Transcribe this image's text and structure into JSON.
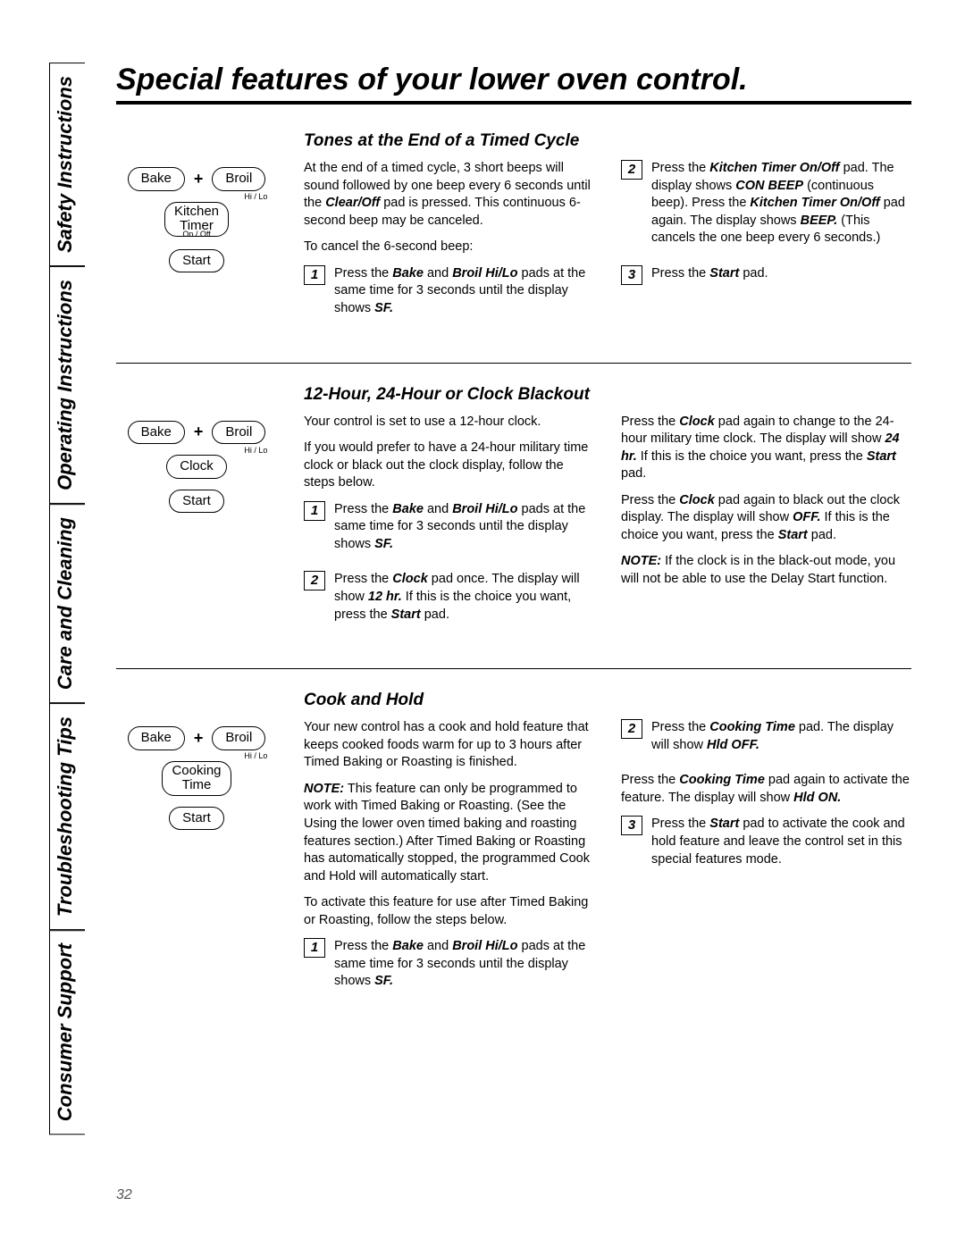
{
  "page_number": "32",
  "title": "Special features of your lower oven control.",
  "sidebar_tabs": [
    "Safety Instructions",
    "Operating Instructions",
    "Care and Cleaning",
    "Troubleshooting Tips",
    "Consumer Support"
  ],
  "btn": {
    "bake": "Bake",
    "broil": "Broil",
    "hilo": "Hi / Lo",
    "kitchen_timer": "Kitchen\nTimer",
    "onoff": "On / Off",
    "clock": "Clock",
    "cooking_time": "Cooking\nTime",
    "start": "Start",
    "plus": "+"
  },
  "sec1": {
    "heading": "Tones at the End of a Timed Cycle",
    "left_p1": "At the end of a timed cycle, 3 short beeps will sound followed by one beep every 6 seconds until the <b><i>Clear/Off</i></b> pad is pressed. This continuous 6-second beep may be canceled.",
    "left_p2": "To cancel the 6-second beep:",
    "left_step1": "Press the <b><i>Bake</i></b> and <b><i>Broil Hi/Lo</i></b> pads at the same time for 3 seconds until the display shows <b><i>SF.</i></b>",
    "right_step2": "Press the <b><i>Kitchen Timer On/Off</i></b> pad. The display shows <b><i>CON BEEP</i></b> (continuous beep). Press the <b><i>Kitchen Timer On/Off</i></b> pad again. The display shows <b><i>BEEP.</i></b> (This cancels the one beep every 6 seconds.)",
    "right_step3": "Press the <b><i>Start</i></b> pad."
  },
  "sec2": {
    "heading": "12-Hour, 24-Hour or Clock Blackout",
    "left_p1": "Your control is set to use a 12-hour clock.",
    "left_p2": "If you would prefer to have a 24-hour military time clock or black out the clock display, follow the steps below.",
    "left_step1": "Press the <b><i>Bake</i></b> and <b><i>Broil Hi/Lo</i></b> pads at the same time for 3 seconds until the display shows <b><i>SF.</i></b>",
    "left_step2": "Press the <b><i>Clock</i></b> pad once. The display will show <b><i>12 hr.</i></b> If this is the choice you want, press the <b><i>Start</i></b> pad.",
    "right_p1": "Press the <b><i>Clock</i></b> pad again to change to the 24-hour military time clock. The display will show <b><i>24 hr.</i></b> If this is the choice you want, press the <b><i>Start</i></b> pad.",
    "right_p2": "Press the <b><i>Clock</i></b> pad again to black out the clock display. The display will show <b><i>OFF.</i></b> If this is the choice you want, press the <b><i>Start</i></b> pad.",
    "right_note": "<b><i>NOTE:</i></b> If the clock is in the black-out mode, you will not be able to use the Delay Start function."
  },
  "sec3": {
    "heading": "Cook and Hold",
    "left_p1": "Your new control has a cook and hold feature that keeps cooked foods warm for up to 3 hours after Timed Baking or Roasting is finished.",
    "left_note": "<b><i>NOTE:</i></b> This feature can only be programmed to work with Timed Baking or Roasting. (See the Using the lower oven timed baking and roasting features section.) After Timed Baking or Roasting has automatically stopped, the programmed Cook and Hold will automatically start.",
    "left_p2": "To activate this feature for use after Timed Baking or Roasting, follow the steps below.",
    "left_step1": "Press the <b><i>Bake</i></b> and <b><i>Broil Hi/Lo</i></b> pads at the same time for 3 seconds until the display shows <b><i>SF.</i></b>",
    "right_step2": "Press the <b><i>Cooking Time</i></b> pad. The display will show <b><i>Hld OFF.</i></b>",
    "right_p1": "Press the <b><i>Cooking Time</i></b> pad again to activate the feature. The display will show <b><i>Hld ON.</i></b>",
    "right_step3": "Press the <b><i>Start</i></b> pad to activate the cook and hold feature and leave the control set in this special features mode."
  }
}
